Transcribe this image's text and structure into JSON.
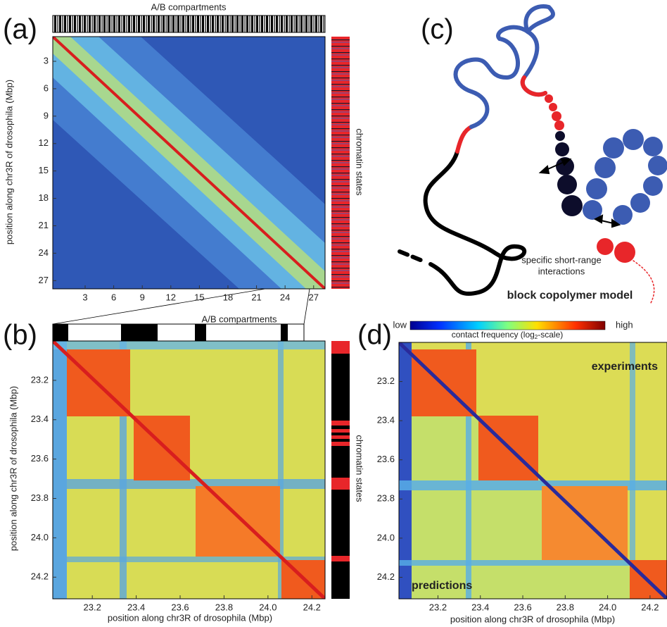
{
  "panels": [
    {
      "label": "(a)",
      "type": "heatmap",
      "top_label": "A/B compartments",
      "side_label": "chromatin states",
      "y_label": "position along chr3R of drosophila (Mbp)",
      "xlim": [
        -0.4,
        28.2
      ],
      "ylim": [
        0.3,
        27.9
      ],
      "xticks": [
        3,
        6,
        9,
        12,
        15,
        18,
        21,
        24,
        27
      ],
      "yticks": [
        3,
        6,
        9,
        12,
        15,
        18,
        21,
        24,
        27
      ]
    },
    {
      "label": "(b)",
      "type": "heatmap",
      "top_label": "A/B compartments",
      "side_label": "chromatin states",
      "x_label": "position along chr3R of drosophila (Mbp)",
      "y_label": "position along chr3R of drosophila (Mbp)",
      "xlim": [
        23.02,
        24.26
      ],
      "ylim": [
        23.0,
        24.31
      ],
      "xticks": [
        23.2,
        23.4,
        23.6,
        23.8,
        {
          "value": 24,
          "label": "24.0"
        },
        24.2
      ],
      "yticks": [
        23.2,
        23.4,
        23.6,
        23.8,
        {
          "value": 24,
          "label": "24.0"
        },
        24.2
      ]
    },
    {
      "label": "(c)",
      "type": "diagram",
      "annotation": [
        "specific short-range",
        "interactions"
      ],
      "model_label": "block copolymer model"
    },
    {
      "label": "(d)",
      "type": "heatmap",
      "x_label": "position along chr3R of drosophila (Mbp)",
      "colorbar": {
        "low": "low",
        "high": "high",
        "label": [
          "contact frequency (log",
          "2",
          "-scale)"
        ]
      },
      "upper_label": "experiments",
      "lower_label": "predictions",
      "xlim": [
        23.016,
        24.28
      ],
      "ylim": [
        23.0,
        24.31
      ],
      "xticks": [
        23.2,
        23.4,
        23.6,
        23.8,
        {
          "value": 24,
          "label": "24.0"
        },
        24.2
      ],
      "yticks": [
        23.2,
        23.4,
        23.6,
        23.8,
        {
          "value": 24,
          "label": "24.0"
        },
        24.2
      ]
    }
  ]
}
